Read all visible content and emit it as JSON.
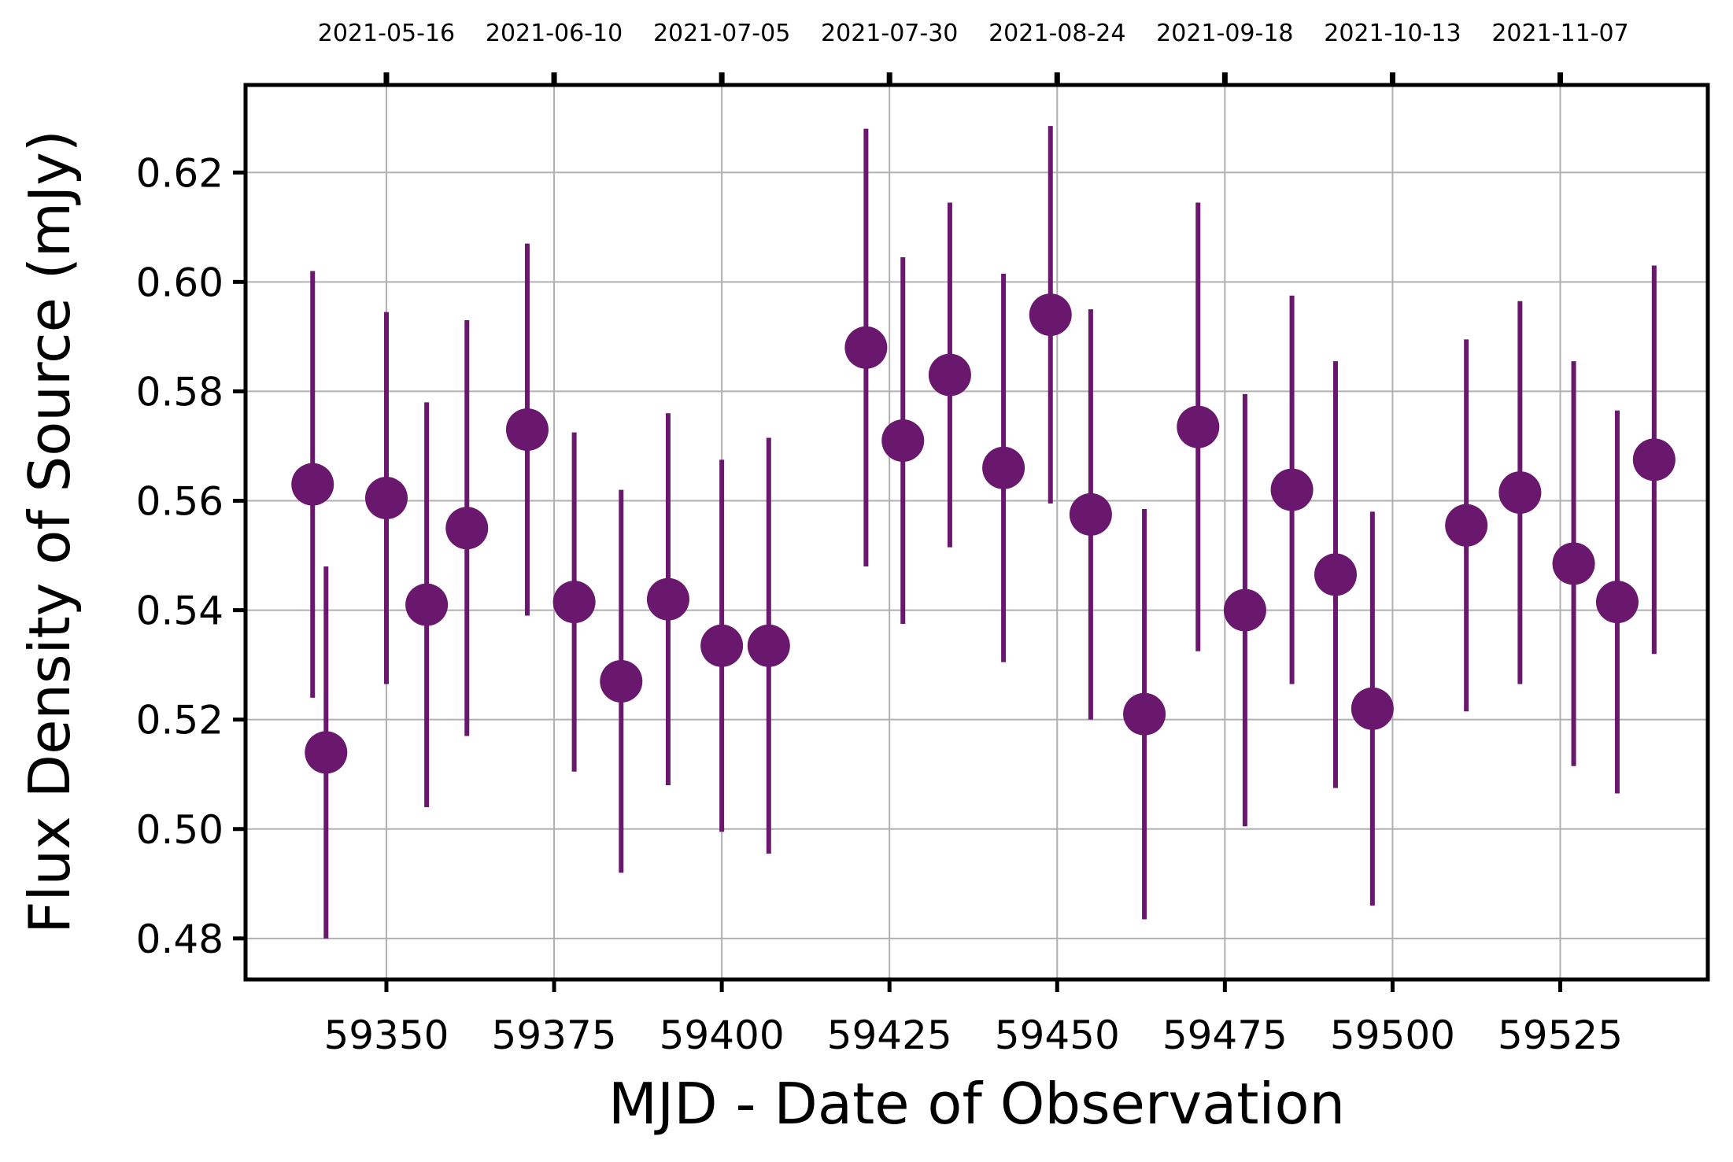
{
  "chart_data": {
    "type": "scatter",
    "title": "",
    "xlabel": "MJD - Date of Observation",
    "ylabel": "Flux Density of Source (mJy)",
    "xlim": [
      59329,
      59547
    ],
    "ylim": [
      0.4725,
      0.636
    ],
    "grid": true,
    "marker_color": "#6a176e",
    "x_ticks": [
      59350,
      59375,
      59400,
      59425,
      59450,
      59475,
      59500,
      59525
    ],
    "y_ticks": [
      0.48,
      0.5,
      0.52,
      0.54,
      0.56,
      0.58,
      0.6,
      0.62
    ],
    "y_tick_labels": [
      "0.48",
      "0.50",
      "0.52",
      "0.54",
      "0.56",
      "0.58",
      "0.60",
      "0.62"
    ],
    "top_x_ticks": [
      59350,
      59375,
      59400,
      59425,
      59450,
      59475,
      59500,
      59525
    ],
    "top_x_tick_labels": [
      "2021-05-16",
      "2021-06-10",
      "2021-07-05",
      "2021-07-30",
      "2021-08-24",
      "2021-09-18",
      "2021-10-13",
      "2021-11-07"
    ],
    "series": [
      {
        "x": [
          59339,
          59341,
          59350,
          59356,
          59362,
          59371,
          59378,
          59385,
          59392,
          59400,
          59407,
          59421.5,
          59427,
          59434,
          59442,
          59449,
          59455,
          59463,
          59471,
          59478,
          59485,
          59491.5,
          59497,
          59511,
          59519,
          59527,
          59533.5,
          59539
        ],
        "y": [
          0.563,
          0.514,
          0.5605,
          0.541,
          0.555,
          0.573,
          0.5415,
          0.527,
          0.542,
          0.5335,
          0.5335,
          0.588,
          0.571,
          0.583,
          0.566,
          0.594,
          0.5575,
          0.521,
          0.5735,
          0.54,
          0.562,
          0.5465,
          0.522,
          0.5555,
          0.5615,
          0.5485,
          0.5415,
          0.5675
        ],
        "yerr": [
          0.039,
          0.034,
          0.034,
          0.037,
          0.038,
          0.034,
          0.031,
          0.035,
          0.034,
          0.034,
          0.038,
          0.04,
          0.0335,
          0.0315,
          0.0355,
          0.0345,
          0.0375,
          0.0375,
          0.041,
          0.0395,
          0.0355,
          0.039,
          0.036,
          0.034,
          0.035,
          0.037,
          0.035,
          0.0355
        ]
      }
    ]
  }
}
